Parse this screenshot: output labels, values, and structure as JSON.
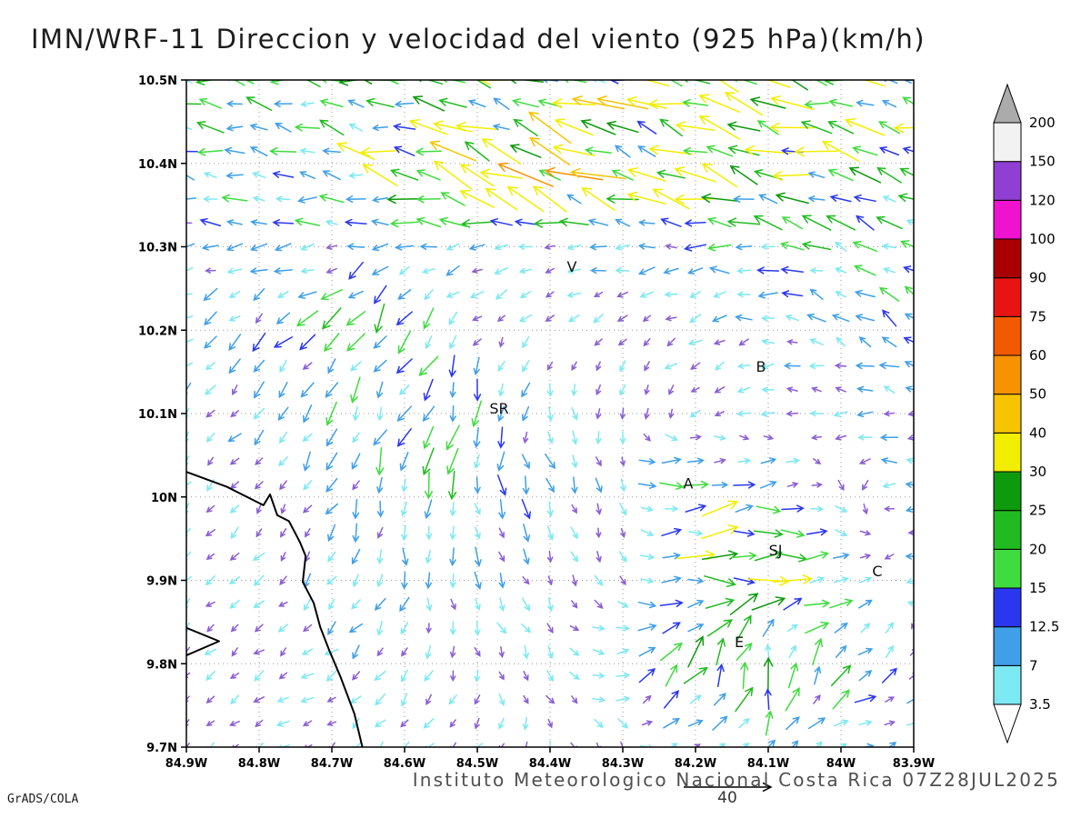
{
  "header": {
    "title": "IMN/WRF-11 Direccion y velocidad del viento (925 hPa)(km/h)"
  },
  "footer": {
    "caption": "Instituto Meteorologico Nacional Costa Rica 07Z28JUL2025",
    "credit": "GrADS/COLA"
  },
  "chart_data": {
    "type": "quiver",
    "title": "IMN/WRF-11 Direccion y velocidad del viento (925 hPa)(km/h)",
    "model": "IMN/WRF-11",
    "variable": "Direccion y velocidad del viento",
    "level": "925 hPa",
    "units": "km/h",
    "valid_time": "07Z28JUL2025",
    "extent": {
      "lon_west": 84.9,
      "lon_east": 83.9,
      "lat_south": 9.7,
      "lat_north": 10.5
    },
    "grid_style": "dotted",
    "x_ticks": [
      "84.9W",
      "84.8W",
      "84.7W",
      "84.6W",
      "84.5W",
      "84.4W",
      "84.3W",
      "84.2W",
      "84.1W",
      "84W",
      "83.9W"
    ],
    "y_ticks": [
      "10.5N",
      "10.4N",
      "10.3N",
      "10.2N",
      "10.1N",
      "10N",
      "9.9N",
      "9.8N",
      "9.7N"
    ],
    "reference_vector": {
      "label": "40",
      "speed_kmh": 40
    },
    "arrow_grid": {
      "cols": 31,
      "rows": 29
    },
    "colorbar": {
      "unit": "km/h",
      "labels": [
        "3.5",
        "7",
        "12.5",
        "15",
        "20",
        "25",
        "30",
        "40",
        "50",
        "60",
        "75",
        "90",
        "100",
        "120",
        "150",
        "200"
      ],
      "levels": [
        3.5,
        7,
        12.5,
        15,
        20,
        25,
        30,
        40,
        50,
        60,
        75,
        90,
        100,
        120,
        150,
        200
      ],
      "colors": [
        "#7de9f2",
        "#3f9fe8",
        "#2a37ef",
        "#3fdc3f",
        "#20bb20",
        "#0d9a0d",
        "#f2ee00",
        "#f7c400",
        "#f79200",
        "#f25a00",
        "#e81414",
        "#a80000",
        "#ef12cf",
        "#8f3fd2",
        "#f2f2f2"
      ],
      "above_color": "#ababab",
      "below_color": "#ffffff",
      "calm_arrow_color": "#8a5fd4"
    },
    "stations": [
      {
        "label": "V",
        "lon_w": 84.37,
        "lat_n": 10.27
      },
      {
        "label": "B",
        "lon_w": 84.11,
        "lat_n": 10.15
      },
      {
        "label": "SR",
        "lon_w": 84.47,
        "lat_n": 10.1
      },
      {
        "label": "A",
        "lon_w": 84.21,
        "lat_n": 10.01
      },
      {
        "label": "SJ",
        "lon_w": 84.09,
        "lat_n": 9.93
      },
      {
        "label": "C",
        "lon_w": 83.95,
        "lat_n": 9.905
      },
      {
        "label": "E",
        "lon_w": 84.14,
        "lat_n": 9.82
      }
    ],
    "coastline_lonlat": [
      [
        84.9,
        10.03
      ],
      [
        84.844,
        10.012
      ],
      [
        84.794,
        9.99
      ],
      [
        84.785,
        10.003
      ],
      [
        84.775,
        9.978
      ],
      [
        84.759,
        9.971
      ],
      [
        84.744,
        9.946
      ],
      [
        84.736,
        9.929
      ],
      [
        84.74,
        9.898
      ],
      [
        84.725,
        9.873
      ],
      [
        84.716,
        9.844
      ],
      [
        84.704,
        9.817
      ],
      [
        84.688,
        9.784
      ],
      [
        84.669,
        9.74
      ],
      [
        84.658,
        9.7
      ]
    ],
    "peninsula_lonlat": [
      [
        84.9,
        9.843
      ],
      [
        84.855,
        9.827
      ],
      [
        84.9,
        9.81
      ]
    ],
    "wind_field": {
      "lons_w": [
        84.9,
        84.8,
        84.7,
        84.6,
        84.5,
        84.4,
        84.3,
        84.2,
        84.1,
        84.0,
        83.9
      ],
      "lats_n": [
        10.5,
        10.4,
        10.3,
        10.2,
        10.1,
        10.0,
        9.9,
        9.8,
        9.7
      ],
      "u_kmh": [
        [
          -25,
          -28,
          -30,
          -33,
          -36,
          -40,
          -43,
          -45,
          -44,
          -40,
          -34
        ],
        [
          -18,
          -24,
          -32,
          -44,
          -62,
          -85,
          -66,
          -52,
          -46,
          -40,
          -33
        ],
        [
          -12,
          -14,
          -14,
          -12,
          -10,
          -8,
          -10,
          -15,
          -20,
          -26,
          -22
        ],
        [
          -5,
          -8,
          -7,
          -5,
          -3,
          -2,
          -3,
          -5,
          -8,
          -12,
          -16
        ],
        [
          -3,
          -4,
          -3,
          -2,
          2,
          3,
          2,
          -2,
          -5,
          -10,
          -12
        ],
        [
          -2,
          -3,
          -2,
          5,
          12,
          8,
          5,
          35,
          20,
          5,
          -10
        ],
        [
          -2,
          -3,
          -3,
          2,
          8,
          5,
          3,
          30,
          38,
          15,
          -10
        ],
        [
          -2,
          -3,
          -4,
          -2,
          3,
          5,
          8,
          10,
          -12,
          12,
          5
        ],
        [
          -2,
          -3,
          -3,
          -2,
          -2,
          3,
          5,
          8,
          5,
          8,
          6
        ]
      ],
      "v_kmh": [
        [
          -4,
          -5,
          -5,
          -5,
          -4,
          -3,
          -3,
          -4,
          -5,
          -5,
          -4
        ],
        [
          -2,
          -3,
          -3,
          -2,
          0,
          2,
          2,
          0,
          -2,
          -3,
          -3
        ],
        [
          -5,
          -8,
          -10,
          -8,
          -5,
          -3,
          -4,
          -5,
          -3,
          2,
          3
        ],
        [
          -8,
          -16,
          -22,
          -30,
          -8,
          -4,
          -5,
          -6,
          -4,
          3,
          4
        ],
        [
          -8,
          -12,
          -18,
          -30,
          -25,
          -6,
          -5,
          -4,
          -3,
          -4,
          -3
        ],
        [
          -6,
          -8,
          -12,
          -22,
          -20,
          -10,
          -5,
          18,
          10,
          -3,
          -4
        ],
        [
          -5,
          -6,
          -8,
          -10,
          -8,
          -5,
          -3,
          12,
          15,
          8,
          -5
        ],
        [
          -4,
          -5,
          -6,
          -8,
          -5,
          -3,
          5,
          30,
          32,
          20,
          8
        ],
        [
          -4,
          -5,
          -5,
          -6,
          -5,
          -4,
          -3,
          8,
          15,
          10,
          5
        ]
      ]
    }
  }
}
